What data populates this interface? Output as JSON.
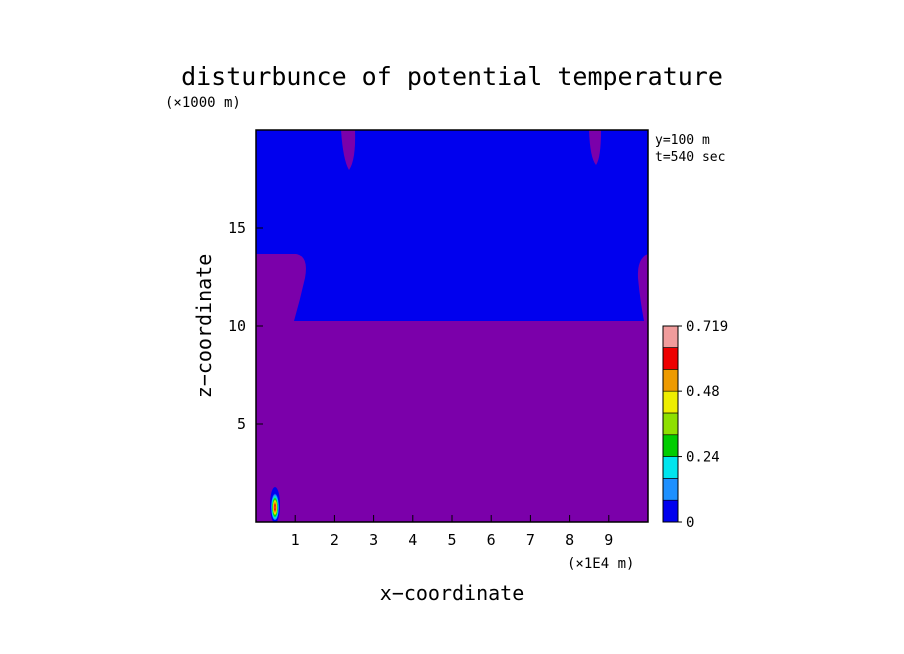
{
  "chart_data": {
    "type": "heatmap",
    "title": "disturbunce of potential temperature",
    "xlabel": "x−coordinate",
    "ylabel": "z−coordinate",
    "x_unit": "(×1E4 m)",
    "y_unit": "(×1000 m)",
    "annotations": [
      "y=100 m",
      "t=540 sec"
    ],
    "xlim": [
      0,
      10
    ],
    "ylim": [
      0,
      20
    ],
    "x_ticks": [
      "1",
      "2",
      "3",
      "4",
      "5",
      "6",
      "7",
      "8",
      "9"
    ],
    "x_tick_values": [
      1,
      2,
      3,
      4,
      5,
      6,
      7,
      8,
      9
    ],
    "y_ticks": [
      "5",
      "10",
      "15"
    ],
    "y_tick_values": [
      5,
      10,
      15
    ],
    "colorbar": {
      "min": 0,
      "max": 0.719,
      "levels": [
        0,
        0.08,
        0.16,
        0.24,
        0.32,
        0.4,
        0.48,
        0.56,
        0.64,
        0.719
      ],
      "tick_labels": [
        "0",
        "0.24",
        "0.48",
        "0.719"
      ],
      "tick_values": [
        0,
        0.24,
        0.48,
        0.719
      ],
      "colors": [
        "#0000ee",
        "#1e90ff",
        "#00e5ee",
        "#00cd00",
        "#8ee000",
        "#eeee00",
        "#ee9a00",
        "#ee0000",
        "#f09c9c"
      ]
    },
    "regions": [
      {
        "name": "upper layer",
        "z_range": [
          10.3,
          20
        ],
        "value_range": [
          0,
          0.08
        ],
        "color": "#0000ee"
      },
      {
        "name": "lower layer",
        "z_range": [
          0,
          10.3
        ],
        "value_range": [
          0,
          0.08
        ],
        "color": "#7b00aa"
      },
      {
        "name": "left edge tongue",
        "x_range": [
          0,
          1.3
        ],
        "z_range": [
          10.3,
          13.7
        ],
        "color": "#7b00aa"
      },
      {
        "name": "right edge tongue",
        "x_range": [
          9.8,
          10
        ],
        "z_range": [
          10.3,
          13.6
        ],
        "color": "#7b00aa"
      },
      {
        "name": "top cell left",
        "x_center": 2.4,
        "z_range": [
          18,
          20
        ],
        "color": "#7b00aa"
      },
      {
        "name": "top cell right",
        "x_center": 8.7,
        "z_range": [
          18.2,
          20
        ],
        "color": "#7b00aa"
      },
      {
        "name": "thermal bubble",
        "x_center": 0.48,
        "z_center": 0.9,
        "peak_value": 0.719
      }
    ]
  }
}
